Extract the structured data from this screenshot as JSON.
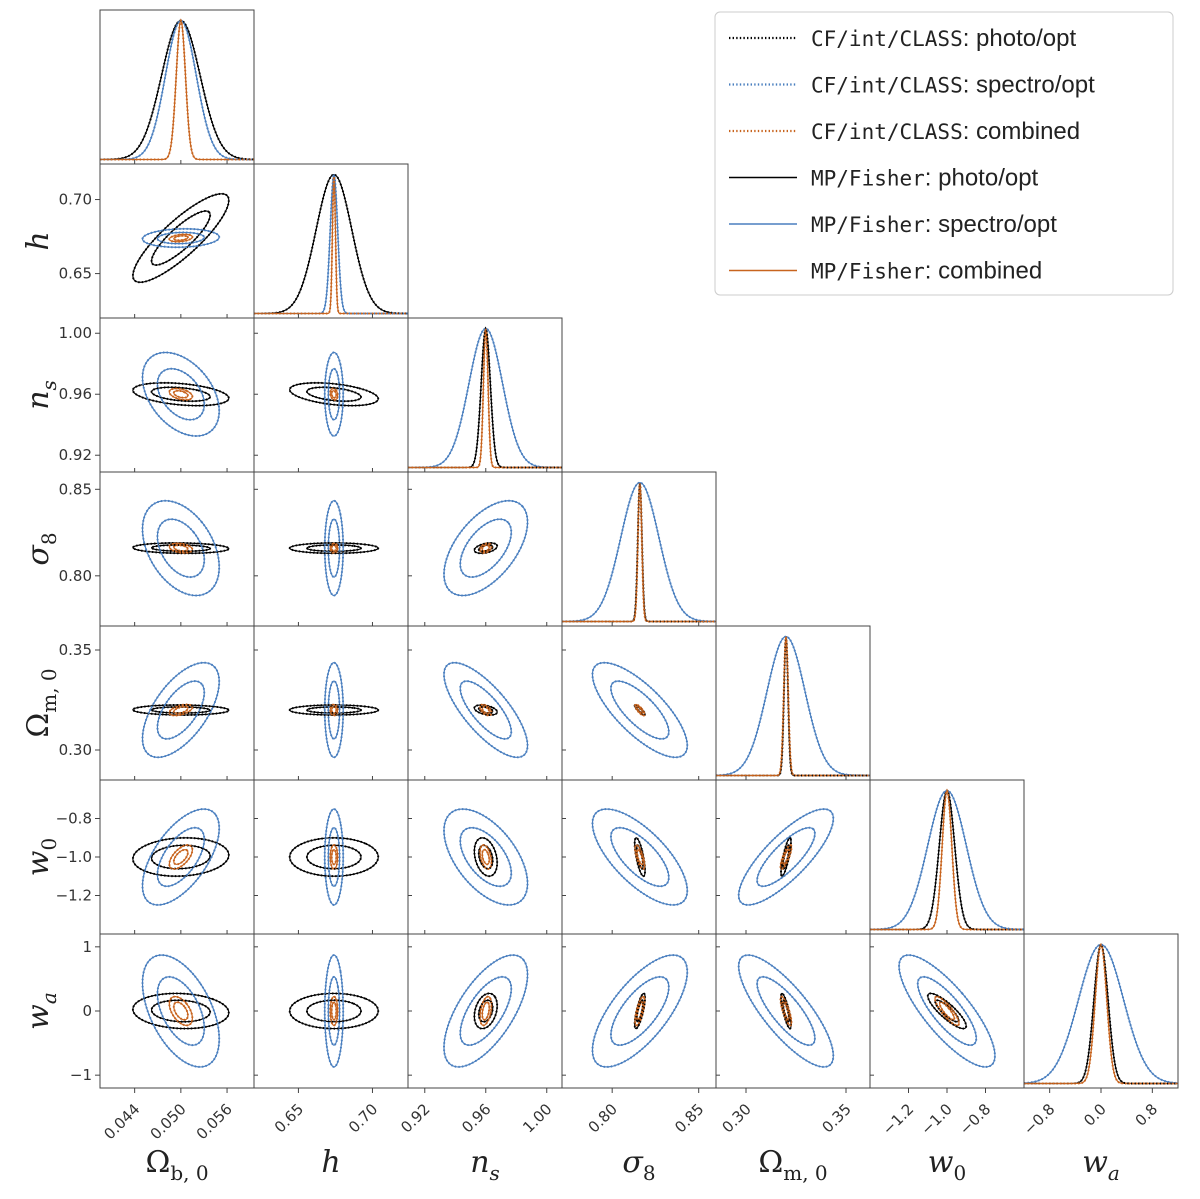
{
  "chart_data": {
    "type": "corner",
    "parameters": [
      {
        "key": "Omega_b0",
        "label": "Ω",
        "sub": "b, 0",
        "sub_italic": false,
        "mean": 0.05,
        "range": [
          0.0395,
          0.0595
        ],
        "ticks": [
          0.044,
          0.05,
          0.056
        ],
        "tick_labels": [
          "0.044",
          "0.050",
          "0.056"
        ],
        "sigma": {
          "photo": 0.0025,
          "spectro": 0.002,
          "combined": 0.0006
        }
      },
      {
        "key": "h",
        "label": "h",
        "sub": "",
        "sub_italic": false,
        "mean": 0.674,
        "range": [
          0.62,
          0.724
        ],
        "ticks": [
          0.65,
          0.7
        ],
        "tick_labels": [
          "0.65",
          "0.70"
        ],
        "sigma": {
          "photo": 0.012,
          "spectro": 0.0025,
          "combined": 0.001
        }
      },
      {
        "key": "n_s",
        "label": "n",
        "sub": "s",
        "sub_italic": true,
        "mean": 0.96,
        "range": [
          0.909,
          1.01
        ],
        "ticks": [
          0.92,
          0.96,
          1.0
        ],
        "tick_labels": [
          "0.92",
          "0.96",
          "1.00"
        ],
        "sigma": {
          "photo": 0.003,
          "spectro": 0.011,
          "combined": 0.0015
        }
      },
      {
        "key": "sigma_8",
        "label": "σ",
        "sub": "8",
        "sub_italic": false,
        "mean": 0.816,
        "range": [
          0.771,
          0.86
        ],
        "ticks": [
          0.8,
          0.85
        ],
        "tick_labels": [
          "0.80",
          "0.85"
        ],
        "sigma": {
          "photo": 0.0012,
          "spectro": 0.011,
          "combined": 0.0011
        }
      },
      {
        "key": "Omega_m0",
        "label": "Ω",
        "sub": "m, 0",
        "sub_italic": false,
        "mean": 0.32,
        "range": [
          0.285,
          0.362
        ],
        "ticks": [
          0.3,
          0.35
        ],
        "tick_labels": [
          "0.30",
          "0.35"
        ],
        "sigma": {
          "photo": 0.001,
          "spectro": 0.0095,
          "combined": 0.0011
        }
      },
      {
        "key": "w_0",
        "label": "w",
        "sub": "0",
        "sub_italic": false,
        "mean": -1.0,
        "range": [
          -1.4,
          -0.6
        ],
        "ticks": [
          -1.2,
          -1.0,
          -0.8
        ],
        "tick_labels": [
          "−1.2",
          "−1.0",
          "−0.8"
        ],
        "sigma": {
          "photo": 0.04,
          "spectro": 0.1,
          "combined": 0.025
        }
      },
      {
        "key": "w_a",
        "label": "w",
        "sub": "a",
        "sub_italic": true,
        "mean": 0.0,
        "range": [
          -1.2,
          1.2
        ],
        "ticks": [
          -0.8,
          0.0,
          0.8
        ],
        "tick_labels": [
          "−0.8",
          "0.0",
          "0.8"
        ],
        "sigma": {
          "photo": 0.11,
          "spectro": 0.35,
          "combined": 0.09
        }
      }
    ],
    "y_ticks": {
      "h": {
        "ticks": [
          0.65,
          0.7
        ],
        "tick_labels": [
          "0.65",
          "0.70"
        ]
      },
      "n_s": {
        "ticks": [
          0.92,
          0.96,
          1.0
        ],
        "tick_labels": [
          "0.92",
          "0.96",
          "1.00"
        ]
      },
      "sigma_8": {
        "ticks": [
          0.8,
          0.85
        ],
        "tick_labels": [
          "0.80",
          "0.85"
        ]
      },
      "Omega_m0": {
        "ticks": [
          0.3,
          0.35
        ],
        "tick_labels": [
          "0.30",
          "0.35"
        ]
      },
      "w_0": {
        "ticks": [
          -1.2,
          -1.0,
          -0.8
        ],
        "tick_labels": [
          "−1.2",
          "−1.0",
          "−0.8"
        ]
      },
      "w_a": {
        "ticks": [
          -1,
          0,
          1
        ],
        "tick_labels": [
          "−1",
          "0",
          "1"
        ]
      }
    },
    "correlations": {
      "photo": {
        "Omega_b0|h": 0.85,
        "Omega_b0|n_s": -0.35,
        "Omega_b0|sigma_8": -0.1,
        "Omega_b0|Omega_m0": -0.05,
        "Omega_b0|w_0": 0.1,
        "Omega_b0|w_a": -0.1,
        "h|n_s": -0.4,
        "h|sigma_8": 0.0,
        "h|Omega_m0": 0.0,
        "h|w_0": 0.0,
        "h|w_a": 0.0,
        "n_s|sigma_8": 0.4,
        "n_s|Omega_m0": -0.4,
        "n_s|w_0": -0.3,
        "n_s|w_a": 0.3,
        "sigma_8|Omega_m0": -0.85,
        "sigma_8|w_0": -0.7,
        "sigma_8|w_a": 0.75,
        "Omega_m0|w_0": 0.8,
        "Omega_m0|w_a": -0.8,
        "w_0|w_a": -0.85
      },
      "spectro": {
        "Omega_b0|h": 0.1,
        "Omega_b0|n_s": -0.4,
        "Omega_b0|sigma_8": -0.4,
        "Omega_b0|Omega_m0": 0.6,
        "Omega_b0|w_0": 0.6,
        "Omega_b0|w_a": -0.5,
        "h|n_s": 0.0,
        "h|sigma_8": 0.0,
        "h|Omega_m0": 0.0,
        "h|w_0": 0.0,
        "h|w_a": 0.0,
        "n_s|sigma_8": 0.55,
        "n_s|Omega_m0": -0.75,
        "n_s|w_0": -0.55,
        "n_s|w_a": 0.65,
        "sigma_8|Omega_m0": -0.75,
        "sigma_8|w_0": -0.7,
        "sigma_8|w_a": 0.7,
        "Omega_m0|w_0": 0.8,
        "Omega_m0|w_a": -0.8,
        "w_0|w_a": -0.8
      },
      "combined": {
        "Omega_b0|h": 0.3,
        "Omega_b0|n_s": -0.4,
        "Omega_b0|sigma_8": -0.3,
        "Omega_b0|Omega_m0": 0.5,
        "Omega_b0|w_0": 0.6,
        "Omega_b0|w_a": -0.5,
        "h|n_s": -0.2,
        "h|sigma_8": 0.0,
        "h|Omega_m0": 0.0,
        "h|w_0": 0.0,
        "h|w_a": 0.0,
        "n_s|sigma_8": 0.3,
        "n_s|Omega_m0": -0.5,
        "n_s|w_0": -0.4,
        "n_s|w_a": 0.4,
        "sigma_8|Omega_m0": -0.8,
        "sigma_8|w_0": -0.7,
        "sigma_8|w_a": 0.7,
        "Omega_m0|w_0": 0.8,
        "Omega_m0|w_a": -0.8,
        "w_0|w_a": -0.85
      }
    },
    "series": [
      {
        "name_mono": "CF/int/CLASS",
        "name_text": ": photo/opt",
        "probe": "photo",
        "color": "#000000",
        "style": "dotted"
      },
      {
        "name_mono": "CF/int/CLASS",
        "name_text": ": spectro/opt",
        "probe": "spectro",
        "color": "#4a7fbf",
        "style": "dotted"
      },
      {
        "name_mono": "CF/int/CLASS",
        "name_text": ": combined",
        "probe": "combined",
        "color": "#c8641e",
        "style": "dotted"
      },
      {
        "name_mono": "MP/Fisher",
        "name_text": ": photo/opt",
        "probe": "photo",
        "color": "#000000",
        "style": "solid"
      },
      {
        "name_mono": "MP/Fisher",
        "name_text": ": spectro/opt",
        "probe": "spectro",
        "color": "#4a7fbf",
        "style": "solid"
      },
      {
        "name_mono": "MP/Fisher",
        "name_text": ": combined",
        "probe": "combined",
        "color": "#c8641e",
        "style": "solid"
      }
    ],
    "confidence_levels_sigma": [
      1.52,
      2.49
    ],
    "legend_position": "top-right"
  }
}
